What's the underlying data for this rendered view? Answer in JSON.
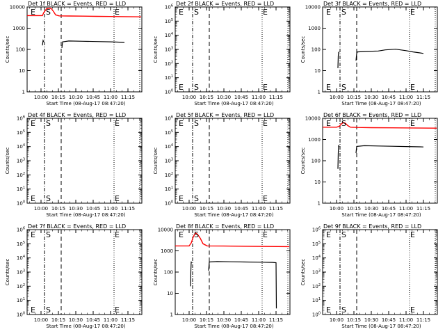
{
  "chart_data": [
    {
      "type": "line",
      "title": "Det 1f BLACK = Events, RED = LLD",
      "ylabel": "Counts/sec",
      "xlabel": "Start Time (08-Aug-17 08:47:20)",
      "yscale": "log",
      "ylim": [
        1,
        16000
      ],
      "ytick_labels": [
        "1",
        "10",
        "100",
        "1000",
        "10000"
      ],
      "xlim": [
        9.8,
        11.45
      ],
      "xtick_labels": [
        "10:00",
        "10:15",
        "10:30",
        "10:45",
        "11:00",
        "11:15"
      ],
      "markers": [
        {
          "label": "E",
          "x": 9.82
        },
        {
          "label": "S",
          "x": 10.06
        },
        {
          "label": "E",
          "x": 11.05
        }
      ],
      "dash_dot_line": 10.05,
      "dashed_line": 10.29,
      "dotted_lines": [
        11.05,
        11.42
      ],
      "series": [
        {
          "color": "#ff0000",
          "segments": [
            [
              [
                9.8,
                6000
              ],
              [
                10.02,
                6000
              ],
              [
                10.04,
                8500
              ],
              [
                10.08,
                13000
              ],
              [
                10.12,
                14000
              ],
              [
                10.15,
                13000
              ],
              [
                10.18,
                9500
              ],
              [
                10.21,
                6500
              ],
              [
                10.26,
                5800
              ],
              [
                10.4,
                5700
              ],
              [
                10.6,
                5600
              ],
              [
                10.8,
                5500
              ],
              [
                11.0,
                5400
              ],
              [
                11.2,
                5300
              ],
              [
                11.44,
                5200
              ]
            ]
          ]
        },
        {
          "color": "#000000",
          "segments": [
            [
              [
                10.02,
                200
              ],
              [
                10.03,
                350
              ],
              [
                10.04,
                300
              ]
            ],
            [
              [
                10.3,
                150
              ],
              [
                10.31,
                300
              ],
              [
                10.4,
                330
              ],
              [
                10.6,
                320
              ],
              [
                10.8,
                310
              ],
              [
                11.0,
                300
              ],
              [
                11.1,
                290
              ],
              [
                11.2,
                280
              ]
            ]
          ]
        }
      ]
    },
    {
      "type": "line",
      "title": "Det 2f BLACK = Events, RED = LLD",
      "ylabel": "Counts/sec",
      "xlabel": "Start Time (08-Aug-17 08:47:20)",
      "yscale": "log",
      "ylim": [
        1,
        1000000
      ],
      "ytick_labels": [
        "10^0",
        "10^1",
        "10^2",
        "10^3",
        "10^4",
        "10^5",
        "10^6"
      ],
      "xlim": [
        9.8,
        11.45
      ],
      "xtick_labels": [
        "10:00",
        "10:15",
        "10:30",
        "10:45",
        "11:00",
        "11:15"
      ],
      "markers": [
        {
          "label": "E",
          "x": 9.82
        },
        {
          "label": "S",
          "x": 10.06
        },
        {
          "label": "E",
          "x": 11.05
        }
      ],
      "dash_dot_line": 10.05,
      "dashed_line": 10.29,
      "dotted_lines": [
        11.05,
        11.42
      ],
      "series": []
    },
    {
      "type": "line",
      "title": "Det 3f BLACK = Events, RED = LLD",
      "ylabel": "Counts/sec",
      "xlabel": "Start Time (08-Aug-17 08:47:20)",
      "yscale": "log",
      "ylim": [
        1,
        16000
      ],
      "ytick_labels": [
        "1",
        "10",
        "100",
        "1000",
        "10000"
      ],
      "xlim": [
        9.8,
        11.45
      ],
      "xtick_labels": [
        "10:00",
        "10:15",
        "10:30",
        "10:45",
        "11:00",
        "11:15"
      ],
      "markers": [
        {
          "label": "E",
          "x": 9.82
        },
        {
          "label": "S",
          "x": 10.06
        },
        {
          "label": "E",
          "x": 11.05
        }
      ],
      "dash_dot_line": 10.05,
      "dashed_line": 10.29,
      "dotted_lines": [
        11.05,
        11.42
      ],
      "series": [
        {
          "color": "#000000",
          "segments": [
            [
              [
                10.02,
                15
              ],
              [
                10.025,
                60
              ],
              [
                10.03,
                90
              ],
              [
                10.04,
                95
              ]
            ],
            [
              [
                10.28,
                35
              ],
              [
                10.29,
                80
              ],
              [
                10.3,
                95
              ],
              [
                10.4,
                100
              ],
              [
                10.6,
                105
              ],
              [
                10.7,
                120
              ],
              [
                10.85,
                130
              ],
              [
                11.0,
                110
              ],
              [
                11.1,
                95
              ],
              [
                11.2,
                85
              ],
              [
                11.25,
                80
              ]
            ]
          ]
        }
      ]
    },
    {
      "type": "line",
      "title": "Det 4f BLACK = Events, RED = LLD",
      "ylabel": "Counts/sec",
      "xlabel": "Start Time (08-Aug-17 08:47:20)",
      "yscale": "log",
      "ylim": [
        1,
        1000000
      ],
      "ytick_labels": [
        "10^0",
        "10^1",
        "10^2",
        "10^3",
        "10^4",
        "10^5",
        "10^6"
      ],
      "xlim": [
        9.8,
        11.45
      ],
      "xtick_labels": [
        "10:00",
        "10:15",
        "10:30",
        "10:45",
        "11:00",
        "11:15"
      ],
      "markers": [
        {
          "label": "E",
          "x": 9.82
        },
        {
          "label": "S",
          "x": 10.06
        },
        {
          "label": "E",
          "x": 11.05
        }
      ],
      "dash_dot_line": 10.05,
      "dashed_line": 10.29,
      "dotted_lines": [
        11.05,
        11.42
      ],
      "series": []
    },
    {
      "type": "line",
      "title": "Det 5f BLACK = Events, RED = LLD",
      "ylabel": "Counts/sec",
      "xlabel": "Start Time (08-Aug-17 08:47:20)",
      "yscale": "log",
      "ylim": [
        1,
        1000000
      ],
      "ytick_labels": [
        "10^0",
        "10^1",
        "10^2",
        "10^3",
        "10^4",
        "10^5",
        "10^6"
      ],
      "xlim": [
        9.8,
        11.45
      ],
      "xtick_labels": [
        "10:00",
        "10:15",
        "10:30",
        "10:45",
        "11:00",
        "11:15"
      ],
      "markers": [
        {
          "label": "E",
          "x": 9.82
        },
        {
          "label": "S",
          "x": 10.06
        },
        {
          "label": "E",
          "x": 11.05
        }
      ],
      "dash_dot_line": 10.05,
      "dashed_line": 10.29,
      "dotted_lines": [
        11.05,
        11.42
      ],
      "series": []
    },
    {
      "type": "line",
      "title": "Det 6f BLACK = Events, RED = LLD",
      "ylabel": "Counts/sec",
      "xlabel": "Start Time (08-Aug-17 08:47:20)",
      "yscale": "log",
      "ylim": [
        1,
        16000
      ],
      "ytick_labels": [
        "1",
        "10",
        "100",
        "1000",
        "10000"
      ],
      "xlim": [
        9.8,
        11.45
      ],
      "xtick_labels": [
        "10:00",
        "10:15",
        "10:30",
        "10:45",
        "11:00",
        "11:15"
      ],
      "markers": [
        {
          "label": "E",
          "x": 9.82
        },
        {
          "label": "S",
          "x": 10.06
        },
        {
          "label": "E",
          "x": 11.05
        }
      ],
      "dash_dot_line": 10.05,
      "dashed_line": 10.29,
      "dotted_lines": [
        11.05,
        11.42
      ],
      "series": [
        {
          "color": "#ff0000",
          "segments": [
            [
              [
                9.8,
                5800
              ],
              [
                10.0,
                5800
              ],
              [
                10.04,
                6500
              ],
              [
                10.07,
                8500
              ],
              [
                10.1,
                10000
              ],
              [
                10.13,
                9000
              ],
              [
                10.16,
                7000
              ],
              [
                10.2,
                5800
              ],
              [
                10.3,
                5600
              ],
              [
                10.5,
                5500
              ],
              [
                10.8,
                5400
              ],
              [
                11.1,
                5300
              ],
              [
                11.44,
                5200
              ]
            ]
          ]
        },
        {
          "color": "#000000",
          "segments": [
            [
              [
                10.02,
                50
              ],
              [
                10.025,
                300
              ],
              [
                10.03,
                700
              ],
              [
                10.04,
                650
              ]
            ],
            [
              [
                10.28,
                300
              ],
              [
                10.29,
                650
              ],
              [
                10.4,
                700
              ],
              [
                10.6,
                680
              ],
              [
                10.8,
                660
              ],
              [
                11.0,
                640
              ],
              [
                11.2,
                620
              ],
              [
                11.25,
                610
              ]
            ]
          ]
        }
      ]
    },
    {
      "type": "line",
      "title": "Det 7f BLACK = Events, RED = LLD",
      "ylabel": "Counts/sec",
      "xlabel": "Start Time (08-Aug-17 08:47:20)",
      "yscale": "log",
      "ylim": [
        1,
        1000000
      ],
      "ytick_labels": [
        "10^0",
        "10^1",
        "10^2",
        "10^3",
        "10^4",
        "10^5",
        "10^6"
      ],
      "xlim": [
        9.8,
        11.45
      ],
      "xtick_labels": [
        "10:00",
        "10:15",
        "10:30",
        "10:45",
        "11:00",
        "11:15"
      ],
      "markers": [
        {
          "label": "E",
          "x": 9.82
        },
        {
          "label": "S",
          "x": 10.06
        },
        {
          "label": "E",
          "x": 11.05
        }
      ],
      "dash_dot_line": 10.05,
      "dashed_line": 10.29,
      "dotted_lines": [
        11.05,
        11.42
      ],
      "series": []
    },
    {
      "type": "line",
      "title": "Det 8f BLACK = Events, RED = LLD",
      "ylabel": "Counts/sec",
      "xlabel": "Start Time (08-Aug-17 08:47:20)",
      "yscale": "log",
      "ylim": [
        1,
        16000
      ],
      "ytick_labels": [
        "1",
        "10",
        "100",
        "1000",
        "10000"
      ],
      "xlim": [
        9.8,
        11.45
      ],
      "xtick_labels": [
        "10:00",
        "10:15",
        "10:30",
        "10:45",
        "11:00",
        "11:15"
      ],
      "markers": [
        {
          "label": "E",
          "x": 9.82
        },
        {
          "label": "S",
          "x": 10.06
        },
        {
          "label": "E",
          "x": 11.05
        }
      ],
      "dash_dot_line": 10.05,
      "dashed_line": 10.29,
      "dotted_lines": [
        11.05,
        11.42
      ],
      "series": [
        {
          "color": "#ff0000",
          "segments": [
            [
              [
                9.8,
                2500
              ],
              [
                10.0,
                2500
              ],
              [
                10.03,
                3500
              ],
              [
                10.06,
                7000
              ],
              [
                10.09,
                11000
              ],
              [
                10.12,
                9500
              ],
              [
                10.16,
                6000
              ],
              [
                10.2,
                3200
              ],
              [
                10.26,
                2500
              ],
              [
                10.5,
                2450
              ],
              [
                10.8,
                2400
              ],
              [
                11.1,
                2350
              ],
              [
                11.44,
                2300
              ]
            ]
          ]
        },
        {
          "color": "#000000",
          "segments": [
            [
              [
                10.02,
                25
              ],
              [
                10.025,
                150
              ],
              [
                10.03,
                400
              ],
              [
                10.04,
                380
              ]
            ],
            [
              [
                10.28,
                150
              ],
              [
                10.29,
                400
              ],
              [
                10.4,
                420
              ],
              [
                10.6,
                410
              ],
              [
                10.8,
                400
              ],
              [
                11.0,
                390
              ],
              [
                11.2,
                380
              ],
              [
                11.25,
                370
              ],
              [
                11.255,
                2
              ]
            ]
          ]
        }
      ]
    },
    {
      "type": "line",
      "title": "Det 9f BLACK = Events, RED = LLD",
      "ylabel": "Counts/sec",
      "xlabel": "Start Time (08-Aug-17 08:47:20)",
      "yscale": "log",
      "ylim": [
        1,
        1000000
      ],
      "ytick_labels": [
        "10^0",
        "10^1",
        "10^2",
        "10^3",
        "10^4",
        "10^5",
        "10^6"
      ],
      "xlim": [
        9.8,
        11.45
      ],
      "xtick_labels": [
        "10:00",
        "10:15",
        "10:30",
        "10:45",
        "11:00",
        "11:15"
      ],
      "markers": [
        {
          "label": "E",
          "x": 9.82
        },
        {
          "label": "S",
          "x": 10.06
        },
        {
          "label": "E",
          "x": 11.05
        }
      ],
      "dash_dot_line": 10.05,
      "dashed_line": 10.29,
      "dotted_lines": [
        11.05,
        11.42
      ],
      "series": []
    }
  ]
}
